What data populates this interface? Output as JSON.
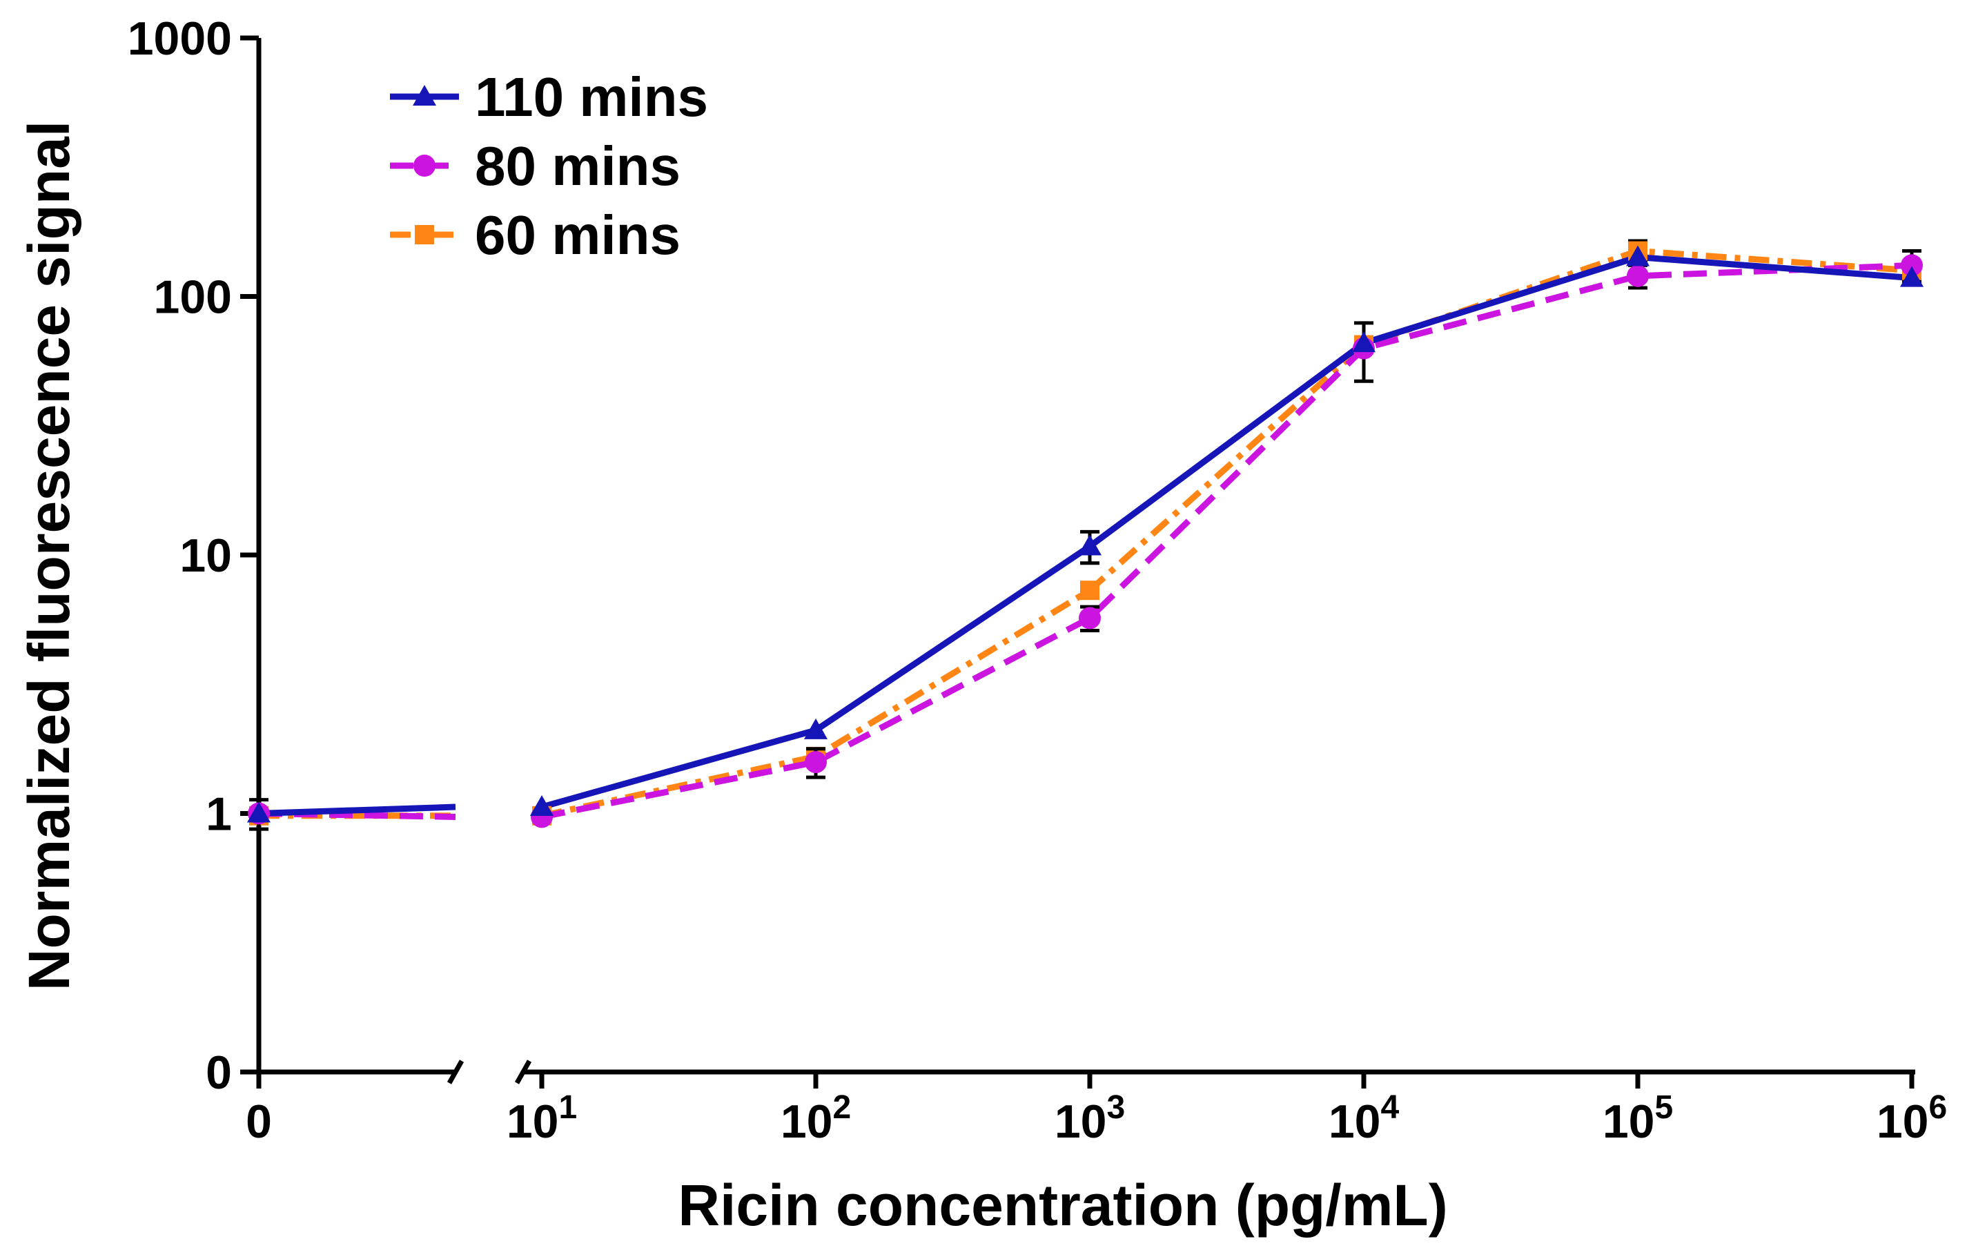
{
  "chart_data": {
    "type": "line",
    "title": "",
    "xlabel": "Ricin concentration (pg/mL)",
    "ylabel": "Normalized fluorescence signal",
    "x_scale": "log-with-break",
    "y_scale": "log",
    "ylim": [
      0.1,
      1000
    ],
    "y_ticks": [
      {
        "value": 0.1,
        "label": "0"
      },
      {
        "value": 1,
        "label": "1"
      },
      {
        "value": 10,
        "label": "10"
      },
      {
        "value": 100,
        "label": "100"
      },
      {
        "value": 1000,
        "label": "1000"
      }
    ],
    "x_ticks": [
      {
        "value": 0,
        "base": "0",
        "exp": ""
      },
      {
        "value": 10,
        "base": "10",
        "exp": "1"
      },
      {
        "value": 100,
        "base": "10",
        "exp": "2"
      },
      {
        "value": 1000,
        "base": "10",
        "exp": "3"
      },
      {
        "value": 10000,
        "base": "10",
        "exp": "4"
      },
      {
        "value": 100000,
        "base": "10",
        "exp": "5"
      },
      {
        "value": 1000000,
        "base": "10",
        "exp": "6"
      }
    ],
    "x": [
      0,
      10,
      100,
      1000,
      10000,
      100000,
      1000000
    ],
    "series": [
      {
        "name": "110 mins",
        "color": "#1515b8",
        "marker": "triangle",
        "dash": "solid",
        "values": [
          1.0,
          1.06,
          2.1,
          10.8,
          66,
          142,
          118
        ],
        "errors": [
          0,
          0,
          0,
          1.5,
          0,
          0,
          0
        ]
      },
      {
        "name": "80 mins",
        "color": "#cc14e0",
        "marker": "circle",
        "dash": "dash",
        "values": [
          1.0,
          0.97,
          1.58,
          5.7,
          63,
          120,
          132
        ],
        "errors": [
          0.13,
          0,
          0.2,
          0.6,
          16,
          12,
          18
        ]
      },
      {
        "name": "60 mins",
        "color": "#ff8515",
        "marker": "square",
        "dash": "dashdot",
        "values": [
          0.98,
          0.98,
          1.66,
          7.3,
          65,
          150,
          126
        ],
        "errors": [
          0,
          0,
          0,
          0,
          0,
          14,
          0
        ]
      }
    ],
    "legend": "top-left"
  }
}
